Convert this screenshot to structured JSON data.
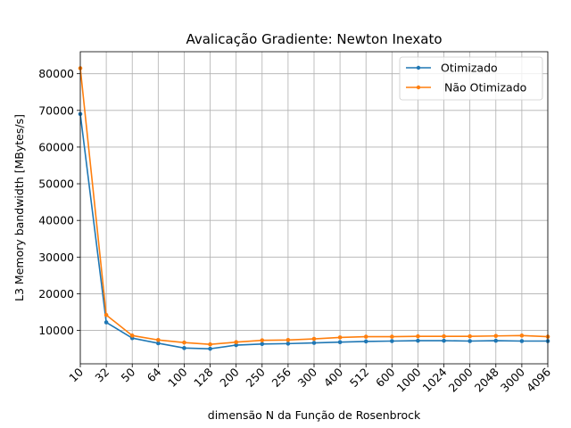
{
  "chart_data": {
    "type": "line",
    "title": "Avalicação Gradiente:  Newton Inexato",
    "xlabel": "dimensão N da Função de Rosenbrock",
    "ylabel": "L3 Memory bandwidth [MBytes/s]",
    "categories": [
      "10",
      "32",
      "50",
      "64",
      "100",
      "128",
      "200",
      "250",
      "256",
      "300",
      "400",
      "512",
      "600",
      "1000",
      "1024",
      "2000",
      "2048",
      "3000",
      "4096"
    ],
    "ylim": [
      900,
      86000
    ],
    "yticks": [
      10000,
      20000,
      30000,
      40000,
      50000,
      60000,
      70000,
      80000
    ],
    "ytick_labels": [
      "10000",
      "20000",
      "30000",
      "40000",
      "50000",
      "60000",
      "70000",
      "80000"
    ],
    "grid": true,
    "legend_position": "top-right",
    "series": [
      {
        "name": "Otimizado",
        "color": "#1f77b4",
        "marker": "point",
        "values": [
          69000,
          12200,
          7900,
          6500,
          5200,
          5000,
          6000,
          6300,
          6400,
          6600,
          6800,
          7000,
          7100,
          7200,
          7200,
          7100,
          7200,
          7100,
          7100
        ]
      },
      {
        "name": " Não Otimizado",
        "color": "#ff7f0e",
        "marker": "point",
        "values": [
          81500,
          14200,
          8600,
          7400,
          6700,
          6200,
          6800,
          7300,
          7400,
          7700,
          8100,
          8300,
          8300,
          8400,
          8400,
          8400,
          8500,
          8600,
          8300
        ]
      }
    ]
  }
}
